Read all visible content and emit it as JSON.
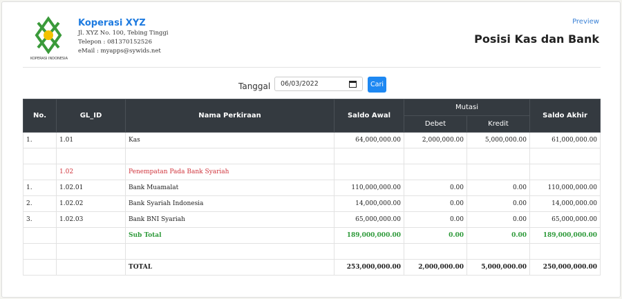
{
  "header": {
    "logo_text": "KOPERASI INDONESIA",
    "company": "Koperasi XYZ",
    "address": "Jl. XYZ No. 100, Tebing Tinggi",
    "phone": "Telepon : 081370152526",
    "email": "eMail : myapps@sywids.net",
    "preview": "Preview",
    "title": "Posisi Kas dan Bank"
  },
  "filter": {
    "label": "Tanggal",
    "date": "06/03/2022",
    "button": "Cari"
  },
  "table": {
    "headers": {
      "no": "No.",
      "gl_id": "GL_ID",
      "nama": "Nama Perkiraan",
      "saldo_awal": "Saldo Awal",
      "mutasi": "Mutasi",
      "debet": "Debet",
      "kredit": "Kredit",
      "saldo_akhir": "Saldo Akhir"
    },
    "rows": [
      [
        "1.",
        "1.01",
        "Kas",
        "64,000,000.00",
        "2,000,000.00",
        "5,000,000.00",
        "61,000,000.00"
      ],
      null,
      [
        null,
        "1.02",
        "Penempatan Pada Bank Syariah",
        null,
        null,
        null,
        null
      ],
      [
        "1.",
        "1.02.01",
        "Bank Muamalat",
        "110,000,000.00",
        "0.00",
        "0.00",
        "110,000,000.00"
      ],
      [
        "2.",
        "1.02.02",
        "Bank Syariah Indonesia",
        "14,000,000.00",
        "0.00",
        "0.00",
        "14,000,000.00"
      ],
      [
        "3.",
        "1.02.03",
        "Bank BNI Syariah",
        "65,000,000.00",
        "0.00",
        "0.00",
        "65,000,000.00"
      ],
      [
        null,
        null,
        "Sub Total",
        "189,000,000.00",
        "0.00",
        "0.00",
        "189,000,000.00"
      ],
      null,
      [
        null,
        null,
        "TOTAL",
        "253,000,000.00",
        "2,000,000.00",
        "5,000,000.00",
        "250,000,000.00"
      ]
    ]
  }
}
